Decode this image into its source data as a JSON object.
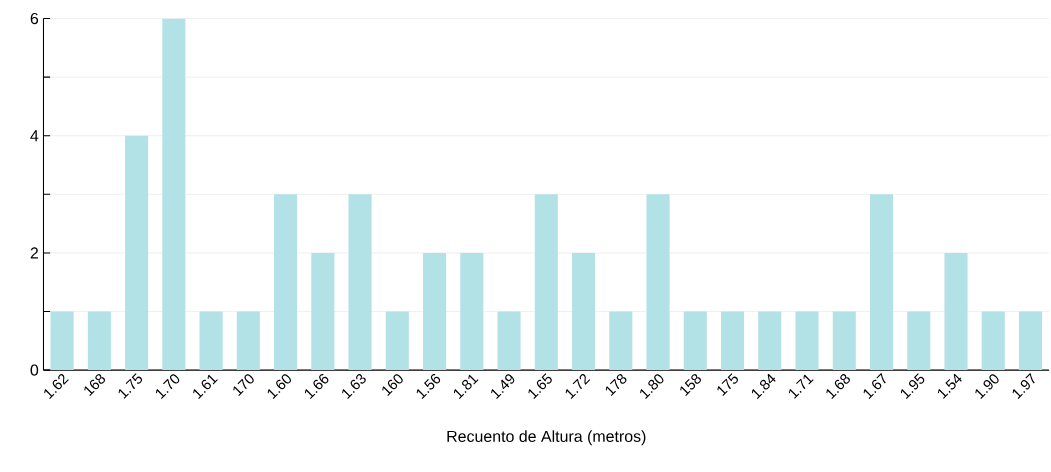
{
  "chart_data": {
    "type": "bar",
    "xlabel": "Recuento de Altura (metros)",
    "categories": [
      "1.62",
      "168",
      "1.75",
      "1.70",
      "1.61",
      "170",
      "1.60",
      "1.66",
      "1.63",
      "160",
      "1.56",
      "1.81",
      "1.49",
      "1.65",
      "1.72",
      "178",
      "1.80",
      "158",
      "175",
      "1.84",
      "1.71",
      "1.68",
      "1.67",
      "1.95",
      "1.54",
      "1.90",
      "1.97"
    ],
    "values": [
      1,
      1,
      4,
      6,
      1,
      1,
      3,
      2,
      3,
      1,
      2,
      2,
      1,
      3,
      2,
      1,
      3,
      1,
      1,
      1,
      1,
      1,
      3,
      1,
      2,
      1,
      1
    ],
    "color": "#b2e2e6",
    "ylim": [
      0,
      6
    ],
    "yticks": [
      0,
      {
        "value": 1,
        "label": null
      },
      2,
      {
        "value": 3,
        "label": null
      },
      4,
      {
        "value": 5,
        "label": null
      },
      6
    ],
    "grid": "y"
  }
}
